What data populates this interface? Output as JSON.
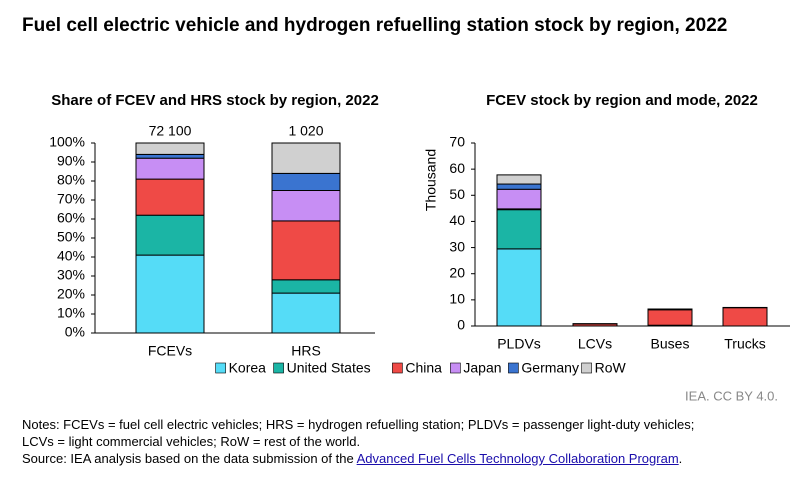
{
  "title": "Fuel cell electric vehicle and hydrogen refuelling station stock by region, 2022",
  "chart_data": [
    {
      "type": "stacked-bar",
      "title": "Share of FCEV and HRS stock by region, 2022",
      "categories": [
        "FCEVs",
        "HRS"
      ],
      "series": [
        {
          "name": "Korea",
          "color": "#55dcf7",
          "values": [
            41,
            21
          ]
        },
        {
          "name": "United States",
          "color": "#1bb5a5",
          "values": [
            21,
            7
          ]
        },
        {
          "name": "China",
          "color": "#ef4a46",
          "values": [
            19,
            31
          ]
        },
        {
          "name": "Japan",
          "color": "#c78ef4",
          "values": [
            11,
            16
          ]
        },
        {
          "name": "Germany",
          "color": "#3a74d0",
          "values": [
            2,
            9
          ]
        },
        {
          "name": "RoW",
          "color": "#d0d0d0",
          "values": [
            6,
            16
          ]
        }
      ],
      "totals": {
        "values": [
          72100,
          1020
        ],
        "value_labels": [
          "72 100",
          "1 020"
        ]
      },
      "ylim": [
        0,
        100
      ],
      "yticks": [
        {
          "value": 0,
          "label": "0%"
        },
        {
          "value": 10,
          "label": "10%"
        },
        {
          "value": 20,
          "label": "20%"
        },
        {
          "value": 30,
          "label": "30%"
        },
        {
          "value": 40,
          "label": "40%"
        },
        {
          "value": 50,
          "label": "50%"
        },
        {
          "value": 60,
          "label": "60%"
        },
        {
          "value": 70,
          "label": "70%"
        },
        {
          "value": 80,
          "label": "80%"
        },
        {
          "value": 90,
          "label": "90%"
        },
        {
          "value": 100,
          "label": "100%"
        }
      ],
      "legend": "bottom"
    },
    {
      "type": "stacked-bar",
      "title": "FCEV stock by region and mode, 2022",
      "y_label": "Thousand",
      "categories": [
        "PLDVs",
        "LCVs",
        "Buses",
        "Trucks"
      ],
      "series": [
        {
          "name": "Korea",
          "color": "#55dcf7",
          "values": [
            29.5,
            0,
            0.3,
            0
          ]
        },
        {
          "name": "United States",
          "color": "#1bb5a5",
          "values": [
            15,
            0,
            0,
            0
          ]
        },
        {
          "name": "China",
          "color": "#ef4a46",
          "values": [
            0.3,
            0.8,
            5.9,
            7
          ]
        },
        {
          "name": "Japan",
          "color": "#c78ef4",
          "values": [
            7.5,
            0,
            0,
            0
          ]
        },
        {
          "name": "Germany",
          "color": "#3a74d0",
          "values": [
            2,
            0,
            0,
            0
          ]
        },
        {
          "name": "RoW",
          "color": "#d0d0d0",
          "values": [
            3.5,
            0.1,
            0.3,
            0.1
          ]
        }
      ],
      "ylim": [
        0,
        70
      ],
      "yticks": [
        0,
        10,
        20,
        30,
        40,
        50,
        60,
        70
      ]
    }
  ],
  "credit": "IEA. CC BY 4.0.",
  "notes": [
    "Notes: FCEVs = fuel cell electric vehicles; HRS = hydrogen refuelling station; PLDVs = passenger light-duty vehicles;",
    "LCVs = light commercial vehicles; RoW = rest of the world."
  ],
  "source": {
    "text": "Source: IEA analysis based on the data submission of the",
    "link": "Advanced Fuel Cells Technology Collaboration Program",
    "end": "."
  }
}
